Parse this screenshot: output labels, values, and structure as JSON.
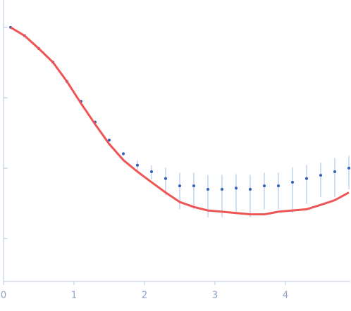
{
  "chart_data": {
    "type": "scatter",
    "x": [
      0.1,
      0.3,
      0.5,
      0.7,
      0.9,
      1.1,
      1.3,
      1.5,
      1.7,
      1.9,
      2.1,
      2.3,
      2.5,
      2.7,
      2.9,
      3.1,
      3.3,
      3.5,
      3.7,
      3.9,
      4.1,
      4.3,
      4.5,
      4.7,
      4.9
    ],
    "series": [
      {
        "color": "#2f5fbf",
        "values": [
          1.0,
          0.76,
          0.5,
          0.32,
          0.17,
          0.089,
          0.045,
          0.025,
          0.016,
          0.011,
          0.0089,
          0.0071,
          0.0056,
          0.0056,
          0.005,
          0.005,
          0.0052,
          0.005,
          0.0056,
          0.0056,
          0.0063,
          0.0071,
          0.0079,
          0.0089,
          0.01
        ],
        "errors": [
          0.01,
          0.01,
          0.008,
          0.005,
          0.003,
          0.002,
          0.001,
          0.001,
          0.001,
          0.002,
          0.002,
          0.003,
          0.003,
          0.003,
          0.003,
          0.003,
          0.003,
          0.003,
          0.003,
          0.003,
          0.004,
          0.004,
          0.004,
          0.005,
          0.005
        ],
        "error_color": "#c3d3ec"
      },
      {
        "type": "line",
        "color": "#ee5555",
        "values": [
          1.0,
          0.76,
          0.5,
          0.32,
          0.17,
          0.083,
          0.042,
          0.022,
          0.013,
          0.0089,
          0.0063,
          0.0045,
          0.0033,
          0.0028,
          0.0025,
          0.0024,
          0.0023,
          0.0022,
          0.0022,
          0.0024,
          0.0025,
          0.0026,
          0.003,
          0.0035,
          0.0045
        ]
      }
    ],
    "xlim": [
      0,
      4.92
    ],
    "xticks": [
      0,
      1,
      2,
      3,
      4
    ],
    "ylim": [
      0.000245,
      2.45
    ],
    "yticks": [
      1,
      0.1,
      0.01,
      0.001
    ],
    "log_y": true,
    "show_y_labels": false
  }
}
